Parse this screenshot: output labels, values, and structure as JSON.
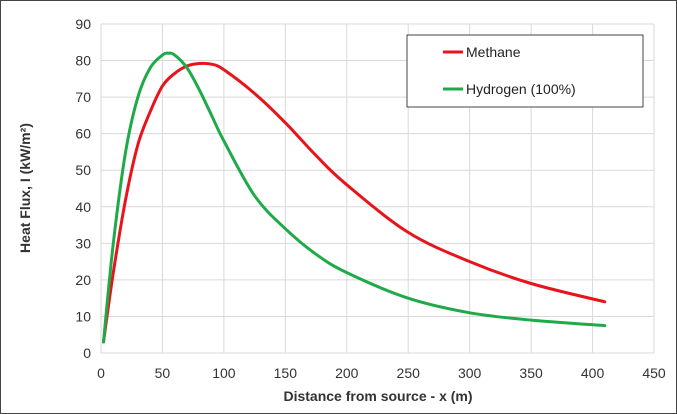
{
  "chart_data": {
    "type": "line",
    "title": "",
    "xlabel": "Distance from source - x (m)",
    "ylabel": "Heat Flux, I (kW/m²)",
    "xlim": [
      0,
      450
    ],
    "ylim": [
      0,
      90
    ],
    "xticks": [
      0,
      50,
      100,
      150,
      200,
      250,
      300,
      350,
      400,
      450
    ],
    "yticks": [
      0,
      10,
      20,
      30,
      40,
      50,
      60,
      70,
      80,
      90
    ],
    "xtick_labels": [
      "0",
      "50",
      "100",
      "150",
      "200",
      "250",
      "300",
      "350",
      "400",
      "450"
    ],
    "ytick_labels": [
      "0",
      "10",
      "20",
      "30",
      "40",
      "50",
      "60",
      "70",
      "80",
      "90"
    ],
    "grid": true,
    "legend_position": "top-right",
    "series": [
      {
        "name": "Methane",
        "color": "#e8141c",
        "x": [
          2,
          10,
          20,
          30,
          40,
          50,
          60,
          70,
          80,
          90,
          100,
          125,
          150,
          175,
          200,
          250,
          300,
          350,
          410
        ],
        "y": [
          3,
          22,
          42,
          57,
          66,
          73,
          76.5,
          78.5,
          79.2,
          79,
          77.5,
          71,
          63,
          54,
          46,
          33,
          25,
          19,
          14
        ]
      },
      {
        "name": "Hydrogen (100%)",
        "color": "#1faa4a",
        "x": [
          2,
          10,
          20,
          30,
          40,
          50,
          55,
          60,
          70,
          80,
          90,
          100,
          125,
          150,
          175,
          200,
          250,
          300,
          350,
          410
        ],
        "y": [
          3,
          30,
          55,
          70,
          78,
          81.5,
          82,
          81.5,
          78,
          72,
          65,
          58,
          43,
          34,
          27,
          22,
          15,
          11,
          9,
          7.5
        ]
      }
    ]
  }
}
